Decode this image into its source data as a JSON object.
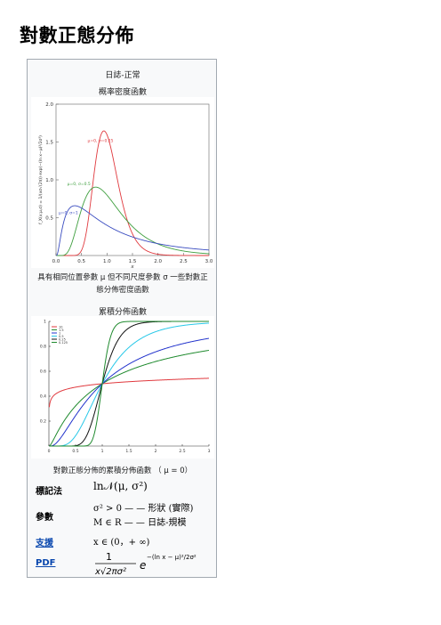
{
  "page_title": "對數正態分佈",
  "infobox": {
    "heading_line1": "日誌-正常",
    "heading_line2": "概率密度函數",
    "pdf_caption": "具有相同位置參數 μ 但不同尺度參數 σ 一些對數正態分佈密度函數",
    "cdf_heading": "累積分佈函數",
    "cdf_caption": "對數正態分佈的累積分佈函數 （ μ = 0）",
    "rows": [
      {
        "label": "標記法",
        "value": "ln𝒩(μ, σ²)"
      },
      {
        "label": "參數",
        "value": "σ² > 0 — — 形狀 (實際)",
        "value2": "M ∈ R — — 日誌-規模"
      },
      {
        "label": "支援",
        "value": "x ∈ (0，+ ∞)"
      },
      {
        "label": "PDF",
        "value": "1/(x√(2πσ²)) e^(−(ln x − μ)²/2σ²)"
      }
    ]
  },
  "chart_data": [
    {
      "type": "line",
      "title": "",
      "xlabel": "x",
      "ylabel": "f_X(x;μ,σ) = 1/(xσ√(2π)) exp(−(ln x−μ)²/2σ²)",
      "xlim": [
        0,
        3.0
      ],
      "ylim": [
        0,
        2.0
      ],
      "xticks": [
        "0.0",
        "0.5",
        "1.0",
        "1.5",
        "2.0",
        "2.5",
        "3.0"
      ],
      "yticks": [
        "0.5",
        "1.0",
        "1.5",
        "2.0"
      ],
      "grid": false,
      "series": [
        {
          "name": "μ=0, σ=0.25",
          "color": "#e0393e",
          "mu": 0,
          "sigma": 0.25
        },
        {
          "name": "μ=0, σ=0.5",
          "color": "#3e9e3e",
          "mu": 0,
          "sigma": 0.5
        },
        {
          "name": "μ=0, σ=1",
          "color": "#3a4cc0",
          "mu": 0,
          "sigma": 1
        }
      ]
    },
    {
      "type": "line",
      "title": "累積分佈函數",
      "xlim": [
        0,
        3
      ],
      "ylim": [
        0,
        1
      ],
      "xticks": [
        "0",
        "0.5",
        "1",
        "1.5",
        "2",
        "2.5",
        "3"
      ],
      "yticks": [
        "0.2",
        "0.4",
        "0.6",
        "0.8",
        "1"
      ],
      "legend": "top-left",
      "grid": false,
      "series": [
        {
          "name": "10",
          "color": "#e0393e",
          "sigma": 10
        },
        {
          "name": "1.5",
          "color": "#1f8a2e",
          "sigma": 1.5
        },
        {
          "name": "1",
          "color": "#2233cc",
          "sigma": 1
        },
        {
          "name": "0.5",
          "color": "#28c8e8",
          "sigma": 0.5
        },
        {
          "name": "0.25",
          "color": "#111111",
          "sigma": 0.25
        },
        {
          "name": "0.125",
          "color": "#1f8a2e",
          "sigma": 0.125
        }
      ]
    }
  ]
}
